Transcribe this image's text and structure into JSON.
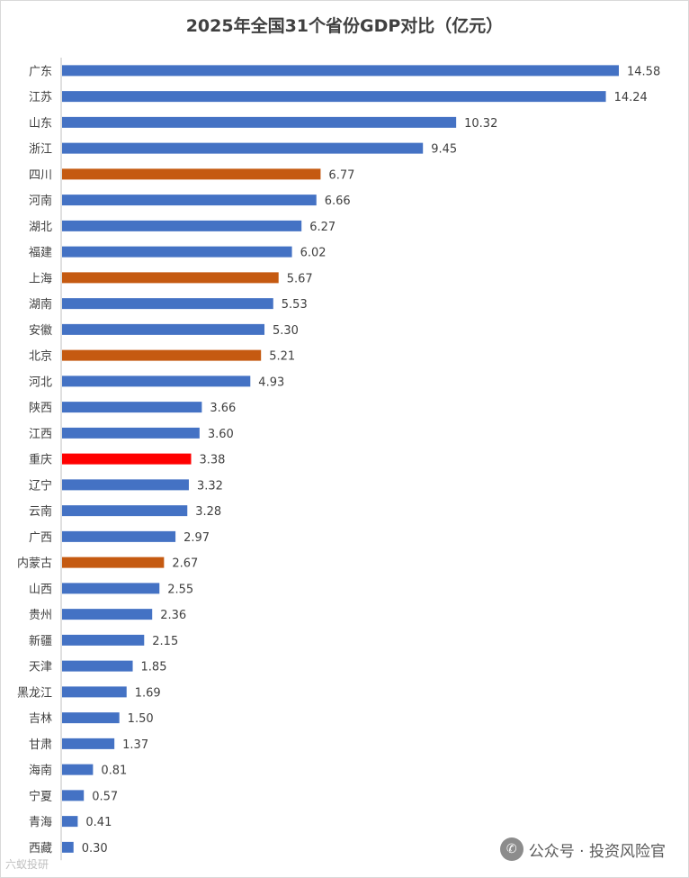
{
  "chart_data": {
    "type": "bar",
    "orientation": "horizontal",
    "title": "2025年全国31个省份GDP对比（亿元）",
    "xlabel": "",
    "ylabel": "",
    "xlim": [
      0,
      15
    ],
    "grid": false,
    "legend": "none",
    "categories": [
      "广东",
      "江苏",
      "山东",
      "浙江",
      "四川",
      "河南",
      "湖北",
      "福建",
      "上海",
      "湖南",
      "安徽",
      "北京",
      "河北",
      "陕西",
      "江西",
      "重庆",
      "辽宁",
      "云南",
      "广西",
      "内蒙古",
      "山西",
      "贵州",
      "新疆",
      "天津",
      "黑龙江",
      "吉林",
      "甘肃",
      "海南",
      "宁夏",
      "青海",
      "西藏"
    ],
    "values": [
      14.58,
      14.24,
      10.32,
      9.45,
      6.77,
      6.66,
      6.27,
      6.02,
      5.67,
      5.53,
      5.3,
      5.21,
      4.93,
      3.66,
      3.6,
      3.38,
      3.32,
      3.28,
      2.97,
      2.67,
      2.55,
      2.36,
      2.15,
      1.85,
      1.69,
      1.5,
      1.37,
      0.81,
      0.57,
      0.41,
      0.3
    ],
    "value_labels": [
      "14.58",
      "14.24",
      "10.32",
      "9.45",
      "6.77",
      "6.66",
      "6.27",
      "6.02",
      "5.67",
      "5.53",
      "5.30",
      "5.21",
      "4.93",
      "3.66",
      "3.60",
      "3.38",
      "3.32",
      "3.28",
      "2.97",
      "2.67",
      "2.55",
      "2.36",
      "2.15",
      "1.85",
      "1.69",
      "1.50",
      "1.37",
      "0.81",
      "0.57",
      "0.41",
      "0.30"
    ],
    "highlight": {
      "orange": [
        "四川",
        "上海",
        "北京",
        "内蒙古"
      ],
      "red": [
        "重庆"
      ]
    },
    "colors": {
      "default": "#4472c4",
      "orange": "#c55a11",
      "red": "#ff0000",
      "axis": "#bfbfbf"
    }
  },
  "watermark": {
    "icon": "wechat-icon",
    "text": "公众号 · 投资风险官"
  },
  "corner_watermark": {
    "text": "六蚁投研"
  }
}
